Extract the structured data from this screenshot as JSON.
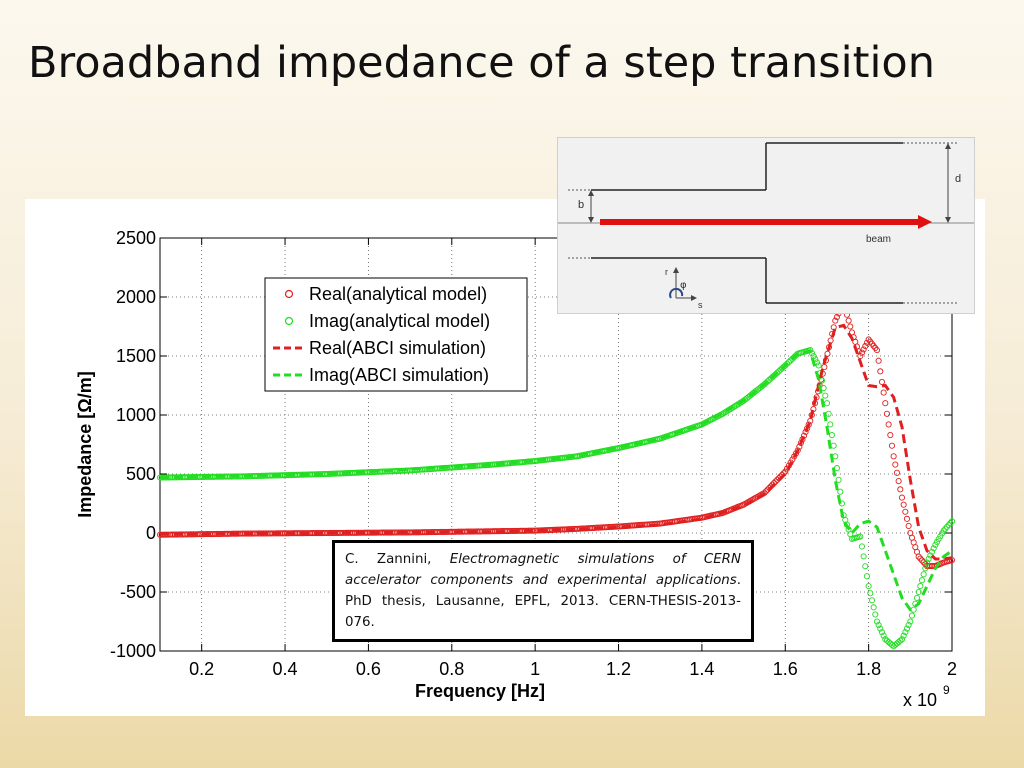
{
  "slide": {
    "title": "Broadband impedance of a step transition"
  },
  "citation": {
    "author": "C. Zannini, ",
    "work_title": "Electromagnetic simulations of CERN accelerator components and experimental applications",
    "details": ". PhD thesis, Lausanne, EPFL, 2013. CERN-THESIS-2013-076."
  },
  "diagram": {
    "label_b": "b",
    "label_d": "d",
    "label_beam": "beam",
    "label_r": "r",
    "label_phi": "φ",
    "label_s": "s",
    "beam_color": "#e01010"
  },
  "chart_data": {
    "type": "line",
    "xlabel": "Frequency [Hz]",
    "ylabel": "Impedance [Ω/m]",
    "x_multiplier_label": "x 10",
    "x_multiplier_exponent": "9",
    "xlim": [
      0.1,
      2.0
    ],
    "ylim": [
      -1000,
      2500
    ],
    "xticks": [
      0.2,
      0.4,
      0.6,
      0.8,
      1.0,
      1.2,
      1.4,
      1.6,
      1.8,
      2.0
    ],
    "xtick_labels": [
      "0.2",
      "0.4",
      "0.6",
      "0.8",
      "1",
      "1.2",
      "1.4",
      "1.6",
      "1.8",
      "2"
    ],
    "yticks": [
      -1000,
      -500,
      0,
      500,
      1000,
      1500,
      2000,
      2500
    ],
    "ytick_labels": [
      "-1000",
      "-500",
      "0",
      "500",
      "1000",
      "1500",
      "2000",
      "2500"
    ],
    "grid": true,
    "legend_position": "top-left",
    "series": [
      {
        "name": "Real(analytical model)",
        "style": "markers",
        "color": "#e02020",
        "x": [
          0.1,
          0.3,
          0.5,
          0.7,
          0.9,
          1.0,
          1.1,
          1.2,
          1.3,
          1.4,
          1.45,
          1.5,
          1.55,
          1.6,
          1.63,
          1.66,
          1.69,
          1.72,
          1.74,
          1.76,
          1.78,
          1.8,
          1.82,
          1.84,
          1.86,
          1.88,
          1.9,
          1.92,
          1.94,
          1.96,
          1.98,
          2.0
        ],
        "y": [
          -15,
          -5,
          0,
          5,
          15,
          20,
          35,
          55,
          80,
          130,
          170,
          240,
          340,
          520,
          700,
          950,
          1350,
          1800,
          1950,
          1700,
          1500,
          1640,
          1550,
          1100,
          650,
          300,
          0,
          -200,
          -280,
          -280,
          -250,
          -230
        ]
      },
      {
        "name": "Imag(analytical model)",
        "style": "markers",
        "color": "#22dd22",
        "x": [
          0.1,
          0.3,
          0.5,
          0.7,
          0.9,
          1.0,
          1.1,
          1.2,
          1.3,
          1.4,
          1.45,
          1.5,
          1.55,
          1.6,
          1.63,
          1.66,
          1.68,
          1.7,
          1.72,
          1.74,
          1.76,
          1.78,
          1.8,
          1.82,
          1.84,
          1.86,
          1.88,
          1.9,
          1.92,
          1.94,
          1.96,
          1.98,
          2.0
        ],
        "y": [
          470,
          480,
          500,
          530,
          580,
          610,
          650,
          720,
          800,
          920,
          1010,
          1120,
          1260,
          1420,
          1520,
          1550,
          1420,
          1100,
          650,
          150,
          -50,
          -30,
          -450,
          -750,
          -900,
          -960,
          -900,
          -750,
          -500,
          -250,
          -100,
          20,
          100
        ]
      },
      {
        "name": "Real(ABCI simulation)",
        "style": "dashed",
        "color": "#e02020",
        "x": [
          0.1,
          0.5,
          0.9,
          1.1,
          1.3,
          1.4,
          1.5,
          1.55,
          1.6,
          1.63,
          1.66,
          1.69,
          1.72,
          1.74,
          1.76,
          1.78,
          1.8,
          1.82,
          1.84,
          1.86,
          1.88,
          1.9,
          1.92,
          1.94,
          1.96,
          1.98,
          2.0
        ],
        "y": [
          -10,
          0,
          10,
          30,
          70,
          120,
          230,
          330,
          500,
          700,
          950,
          1400,
          1740,
          1760,
          1650,
          1450,
          1250,
          1240,
          1250,
          1150,
          900,
          450,
          50,
          -150,
          -220,
          -220,
          -210
        ]
      },
      {
        "name": "Imag(ABCI simulation)",
        "style": "dashed",
        "color": "#22dd22",
        "x": [
          0.1,
          0.5,
          0.9,
          1.1,
          1.3,
          1.4,
          1.5,
          1.55,
          1.6,
          1.63,
          1.66,
          1.68,
          1.7,
          1.72,
          1.74,
          1.76,
          1.78,
          1.8,
          1.82,
          1.84,
          1.86,
          1.88,
          1.9,
          1.92,
          1.94,
          1.96,
          1.98,
          2.0
        ],
        "y": [
          470,
          500,
          580,
          650,
          800,
          920,
          1120,
          1260,
          1420,
          1520,
          1540,
          1300,
          900,
          450,
          100,
          0,
          80,
          100,
          50,
          -150,
          -350,
          -550,
          -650,
          -600,
          -450,
          -300,
          -200,
          -150
        ]
      }
    ]
  }
}
